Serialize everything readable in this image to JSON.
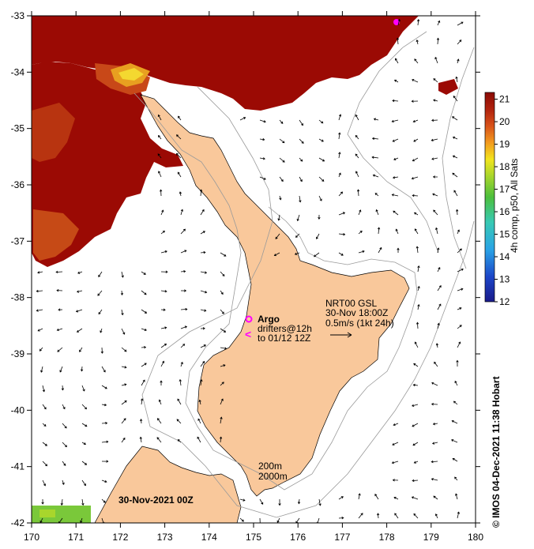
{
  "map": {
    "lon_range": [
      170,
      180
    ],
    "lat_range": [
      -42,
      -33
    ],
    "x_ticks": [
      "170",
      "171",
      "172",
      "173",
      "174",
      "175",
      "176",
      "177",
      "178",
      "179",
      "180"
    ],
    "y_ticks": [
      "-33",
      "-34",
      "-35",
      "-36",
      "-37",
      "-38",
      "-39",
      "-40",
      "-41",
      "-42"
    ],
    "colors": {
      "land": "#f9c89b",
      "sst_high": "#9b0a04",
      "sst_mid": "#c1461a",
      "contour": "#9a9a9a",
      "frame": "#000000"
    }
  },
  "colorbar": {
    "label": "4h comp, p50, All Sats",
    "ticks": [
      "21",
      "20",
      "19",
      "18",
      "17",
      "16",
      "15",
      "14",
      "13",
      "12"
    ],
    "range": [
      12,
      21.3
    ]
  },
  "legend": {
    "argo_label": "Argo",
    "drifters_label": "drifters@12h",
    "drifters_to": "to 01/12 12Z",
    "argo_symbol_color": "#ff00ff",
    "current_source": "NRT00 GSL",
    "current_time": "30-Nov 18:00Z",
    "current_scale": "0.5m/s (1kt 24h)"
  },
  "contours": {
    "shallow": "200m",
    "deep": "2000m"
  },
  "map_date": "30-Nov-2021 00Z",
  "credit": "© IMOS 04-Dec-2021 11:38 Hobart"
}
